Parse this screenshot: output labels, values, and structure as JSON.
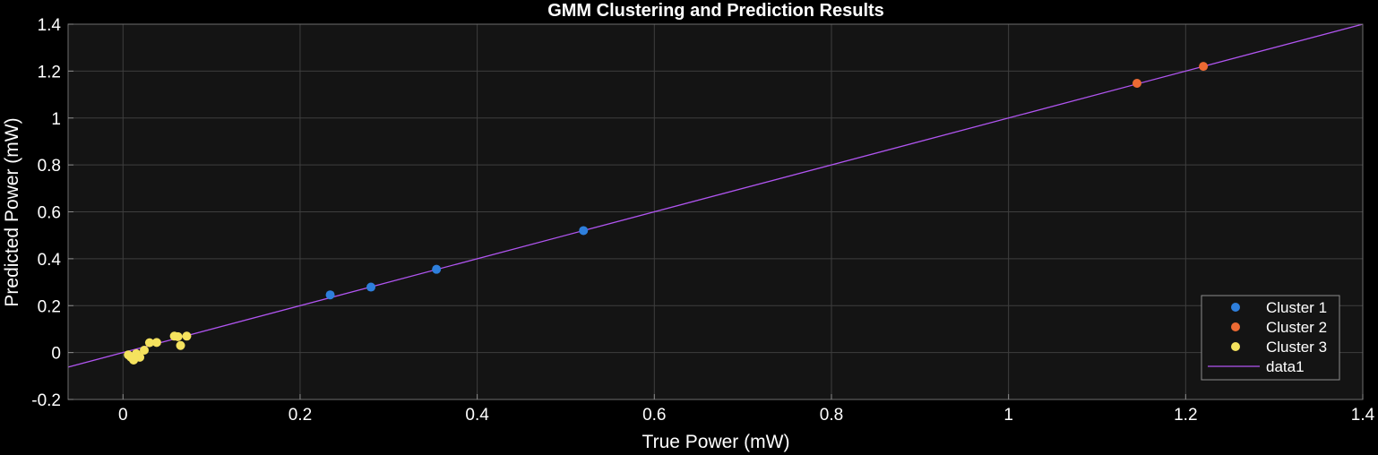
{
  "chart_data": {
    "type": "scatter",
    "title": "GMM Clustering and Prediction Results",
    "xlabel": "True Power (mW)",
    "ylabel": "Predicted Power (mW)",
    "xlim": [
      -0.062,
      1.4
    ],
    "ylim": [
      -0.2,
      1.4
    ],
    "xticks": [
      0,
      0.2,
      0.4,
      0.6,
      0.8,
      1,
      1.2,
      1.4
    ],
    "xtick_labels": [
      "0",
      "0.2",
      "0.4",
      "0.6",
      "0.8",
      "1",
      "1.2",
      "1.4"
    ],
    "yticks": [
      -0.2,
      0,
      0.2,
      0.4,
      0.6,
      0.8,
      1,
      1.2,
      1.4
    ],
    "ytick_labels": [
      "-0.2",
      "0",
      "0.2",
      "0.4",
      "0.6",
      "0.8",
      "1",
      "1.2",
      "1.4"
    ],
    "grid": true,
    "legend_position": "bottom-right",
    "series": [
      {
        "name": "Cluster 1",
        "kind": "scatter",
        "color": "#2e7fdc",
        "points": [
          [
            0.234,
            0.246
          ],
          [
            0.28,
            0.279
          ],
          [
            0.354,
            0.355
          ],
          [
            0.52,
            0.52
          ]
        ]
      },
      {
        "name": "Cluster 2",
        "kind": "scatter",
        "color": "#ec6a33",
        "points": [
          [
            1.145,
            1.148
          ],
          [
            1.22,
            1.22
          ]
        ]
      },
      {
        "name": "Cluster 3",
        "kind": "scatter",
        "color": "#f5e25e",
        "points": [
          [
            0.006,
            -0.01
          ],
          [
            0.009,
            -0.02
          ],
          [
            0.012,
            -0.032
          ],
          [
            0.015,
            -0.005
          ],
          [
            0.019,
            -0.02
          ],
          [
            0.024,
            0.01
          ],
          [
            0.03,
            0.042
          ],
          [
            0.038,
            0.043
          ],
          [
            0.058,
            0.07
          ],
          [
            0.062,
            0.068
          ],
          [
            0.065,
            0.03
          ],
          [
            0.072,
            0.07
          ]
        ]
      },
      {
        "name": "data1",
        "kind": "line",
        "color": "#b055f0",
        "points": [
          [
            -0.062,
            -0.062
          ],
          [
            1.4,
            1.4
          ]
        ]
      }
    ]
  }
}
